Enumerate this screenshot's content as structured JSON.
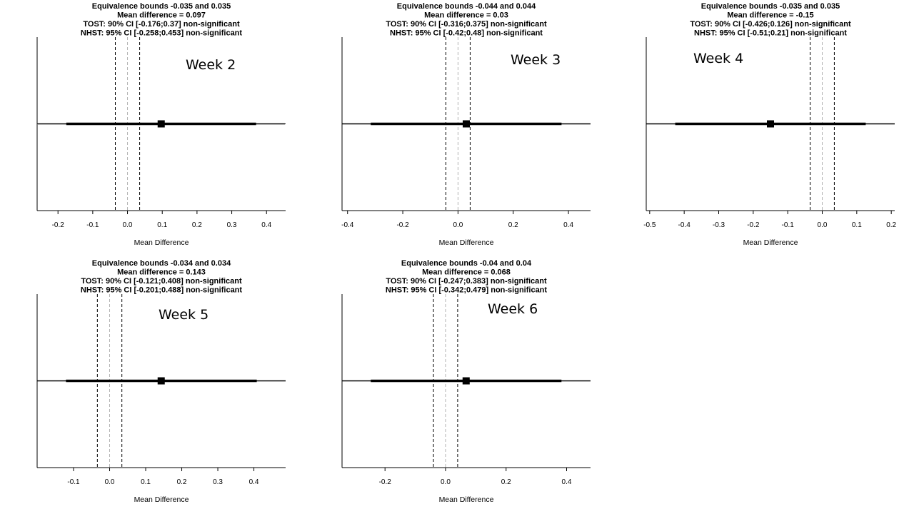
{
  "chart_data": [
    {
      "type": "scatter",
      "title_lines": [
        "Equivalence bounds -0.035 and 0.035",
        "Mean difference = 0.097",
        "TOST: 90% CI [-0.176;0.37] non-significant",
        "NHST: 95% CI [-0.258;0.453] non-significant"
      ],
      "annotation": "Week 2",
      "xlabel": "Mean Difference",
      "xlim": [
        -0.26,
        0.455
      ],
      "xticks": [
        -0.2,
        -0.1,
        0.0,
        0.1,
        0.2,
        0.3,
        0.4
      ],
      "xtick_labels": [
        "-0.2",
        "-0.1",
        "0.0",
        "0.1",
        "0.2",
        "0.3",
        "0.4"
      ],
      "equivalence_bounds": [
        -0.035,
        0.035
      ],
      "mean_difference": 0.097,
      "ci90": [
        -0.176,
        0.37
      ],
      "ci95": [
        -0.258,
        0.453
      ]
    },
    {
      "type": "scatter",
      "title_lines": [
        "Equivalence bounds -0.044 and 0.044",
        "Mean difference = 0.03",
        "TOST: 90% CI [-0.316;0.375] non-significant",
        "NHST: 95% CI [-0.42;0.48] non-significant"
      ],
      "annotation": "Week 3",
      "xlabel": "Mean Difference",
      "xlim": [
        -0.42,
        0.48
      ],
      "xticks": [
        -0.4,
        -0.2,
        0.0,
        0.2,
        0.4
      ],
      "xtick_labels": [
        "-0.4",
        "-0.2",
        "0.0",
        "0.2",
        "0.4"
      ],
      "equivalence_bounds": [
        -0.044,
        0.044
      ],
      "mean_difference": 0.03,
      "ci90": [
        -0.316,
        0.375
      ],
      "ci95": [
        -0.42,
        0.48
      ]
    },
    {
      "type": "scatter",
      "title_lines": [
        "Equivalence bounds -0.035 and 0.035",
        "Mean difference = -0.15",
        "TOST: 90% CI [-0.426;0.126] non-significant",
        "NHST: 95% CI [-0.51;0.21] non-significant"
      ],
      "annotation": "Week 4",
      "xlabel": "Mean Difference",
      "xlim": [
        -0.51,
        0.21
      ],
      "xticks": [
        -0.5,
        -0.4,
        -0.3,
        -0.2,
        -0.1,
        0.0,
        0.1,
        0.2
      ],
      "xtick_labels": [
        "-0.5",
        "-0.4",
        "-0.3",
        "-0.2",
        "-0.1",
        "0.0",
        "0.1",
        "0.2"
      ],
      "equivalence_bounds": [
        -0.035,
        0.035
      ],
      "mean_difference": -0.15,
      "ci90": [
        -0.426,
        0.126
      ],
      "ci95": [
        -0.51,
        0.21
      ]
    },
    {
      "type": "scatter",
      "title_lines": [
        "Equivalence bounds -0.034 and 0.034",
        "Mean difference = 0.143",
        "TOST: 90% CI [-0.121;0.408] non-significant",
        "NHST: 95% CI [-0.201;0.488] non-significant"
      ],
      "annotation": "Week 5",
      "xlabel": "Mean Difference",
      "xlim": [
        -0.201,
        0.488
      ],
      "xticks": [
        -0.1,
        0.0,
        0.1,
        0.2,
        0.3,
        0.4
      ],
      "xtick_labels": [
        "-0.1",
        "0.0",
        "0.1",
        "0.2",
        "0.3",
        "0.4"
      ],
      "equivalence_bounds": [
        -0.034,
        0.034
      ],
      "mean_difference": 0.143,
      "ci90": [
        -0.121,
        0.408
      ],
      "ci95": [
        -0.201,
        0.488
      ]
    },
    {
      "type": "scatter",
      "title_lines": [
        "Equivalence bounds -0.04 and 0.04",
        "Mean difference = 0.068",
        "TOST: 90% CI [-0.247;0.383] non-significant",
        "NHST: 95% CI [-0.342;0.479] non-significant"
      ],
      "annotation": "Week 6",
      "xlabel": "Mean Difference",
      "xlim": [
        -0.342,
        0.479
      ],
      "xticks": [
        -0.2,
        0.0,
        0.2,
        0.4
      ],
      "xtick_labels": [
        "-0.2",
        "0.0",
        "0.2",
        "0.4"
      ],
      "equivalence_bounds": [
        -0.04,
        0.04
      ],
      "mean_difference": 0.068,
      "ci90": [
        -0.247,
        0.383
      ],
      "ci95": [
        -0.342,
        0.479
      ]
    }
  ]
}
